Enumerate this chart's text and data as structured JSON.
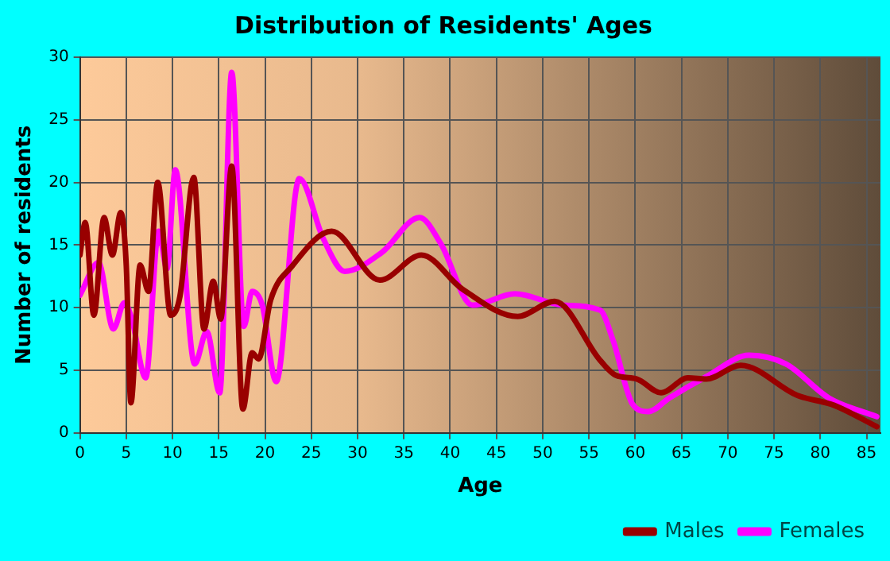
{
  "chart_data": {
    "type": "line",
    "title": "Distribution of Residents' Ages",
    "xlabel": "Age",
    "ylabel": "Number of residents",
    "xlim": [
      0,
      86.5
    ],
    "xticks": [
      0,
      5,
      10,
      15,
      20,
      25,
      30,
      35,
      40,
      45,
      50,
      55,
      60,
      65,
      70,
      75,
      80,
      85
    ],
    "ylim": [
      0,
      30
    ],
    "yticks": [
      0,
      5,
      10,
      15,
      20,
      25,
      30
    ],
    "grid": true,
    "legend": "bottom right",
    "marker": "none",
    "line_style": "solid",
    "series": [
      {
        "name": "Males",
        "color": "#990000",
        "x": [
          0,
          0.57,
          1.5,
          2.6,
          3.5,
          4.4,
          5.0,
          5.5,
          6.5,
          7.4,
          8.4,
          9.8,
          10.8,
          12.3,
          13.4,
          14.4,
          15.2,
          16.4,
          17.6,
          18.6,
          19.3,
          20.6,
          22.9,
          27.2,
          32.4,
          36.9,
          41.3,
          47.3,
          51.3,
          56.2,
          57.9,
          60.2,
          62.8,
          65.7,
          67.7,
          71.4,
          77.5,
          81.5,
          86.1
        ],
        "values": [
          14.2,
          16.8,
          9.4,
          17.2,
          14.2,
          17.6,
          13.4,
          2.4,
          13.4,
          11.3,
          20,
          9.4,
          10.9,
          20.4,
          8.3,
          12.1,
          9.1,
          21.3,
          1.9,
          6.4,
          5.9,
          10.6,
          13.3,
          16.1,
          12.2,
          14.2,
          11.5,
          9.3,
          10.5,
          5.8,
          4.6,
          4.3,
          3.2,
          4.4,
          4.3,
          5.4,
          3.0,
          2.2,
          0.5
        ]
      },
      {
        "name": "Females",
        "color": "#ff00ff",
        "x": [
          0,
          2.0,
          3.6,
          4.8,
          5.6,
          7.1,
          8.5,
          9.4,
          10.3,
          12.4,
          13.7,
          15.1,
          16.4,
          17.7,
          18.6,
          19.7,
          21.2,
          23.7,
          26.3,
          28.6,
          32.6,
          36.7,
          39.0,
          42.4,
          47.0,
          52.2,
          56.2,
          57.6,
          59.7,
          61.4,
          63.7,
          67.7,
          72.3,
          76.3,
          80.9,
          86.1
        ],
        "values": [
          11.0,
          13.6,
          8.3,
          10.4,
          9.1,
          4.4,
          16.1,
          13.1,
          21.0,
          5.5,
          8.1,
          3.2,
          28.8,
          8.5,
          11.3,
          10.2,
          4.1,
          20.3,
          15.5,
          12.9,
          14.4,
          17.2,
          15.1,
          10.2,
          11.1,
          10.2,
          9.8,
          7.4,
          2.3,
          1.7,
          2.8,
          4.5,
          6.2,
          5.5,
          2.8,
          1.3
        ]
      }
    ]
  }
}
